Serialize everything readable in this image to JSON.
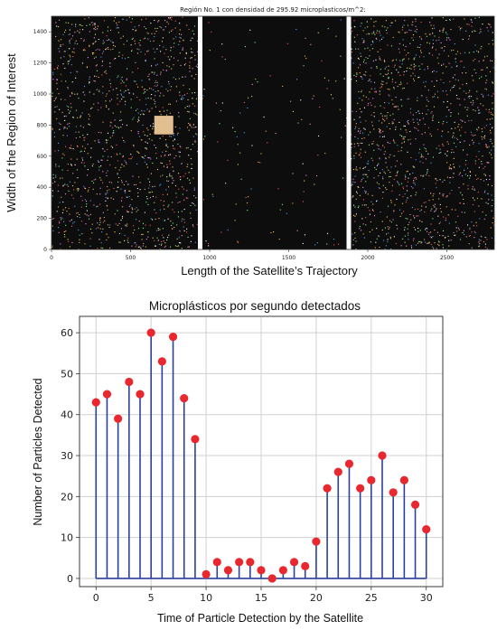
{
  "chart_data": [
    {
      "type": "scatter",
      "title": "Región No. 1 con densidad de 295.92 microplasticos/m^2:",
      "xlabel": "Length of the Satellite’s Trajectory",
      "ylabel": "Width of the Region of Interest",
      "xlim": [
        0,
        2800
      ],
      "ylim": [
        0,
        1500
      ],
      "xticks": [
        "0",
        "500",
        "1000",
        "1500",
        "2000",
        "2500"
      ],
      "yticks": [
        "0",
        "200",
        "400",
        "600",
        "800",
        "1000",
        "1200",
        "1400"
      ],
      "background_color": "#0d0d0d",
      "particle_colors": [
        "#ffd24a",
        "#ff5a5a",
        "#4aa3ff",
        "#ffffff",
        "#7cff7c",
        "#ff8cff",
        "#ffb050"
      ],
      "dividers_x": [
        940,
        1880
      ],
      "segments": [
        {
          "x_range": [
            0,
            930
          ],
          "density": "high"
        },
        {
          "x_range": [
            950,
            1870
          ],
          "density": "low"
        },
        {
          "x_range": [
            1890,
            2800
          ],
          "density": "high"
        }
      ],
      "highlight_box": {
        "x_range": [
          650,
          770
        ],
        "y_range": [
          740,
          860
        ],
        "color": "#e2bf91"
      }
    },
    {
      "type": "stem",
      "title": "Microplásticos por segundo detectados",
      "xlabel": "Time of Particle Detection by the Satellite",
      "ylabel": "Number of Particles Detected",
      "xlim": [
        -1.5,
        31.5
      ],
      "ylim": [
        -2,
        64
      ],
      "xticks": [
        "0",
        "5",
        "10",
        "15",
        "20",
        "25",
        "30"
      ],
      "yticks": [
        "0",
        "10",
        "20",
        "30",
        "40",
        "50",
        "60"
      ],
      "grid": true,
      "stem_color": "#2b3f9e",
      "marker_color": "#e8282e",
      "x": [
        0,
        1,
        2,
        3,
        4,
        5,
        6,
        7,
        8,
        9,
        10,
        11,
        12,
        13,
        14,
        15,
        16,
        17,
        18,
        19,
        20,
        21,
        22,
        23,
        24,
        25,
        26,
        27,
        28,
        29,
        30
      ],
      "values": [
        43,
        45,
        39,
        48,
        45,
        60,
        53,
        59,
        44,
        34,
        1,
        4,
        2,
        4,
        4,
        2,
        0,
        2,
        4,
        3,
        9,
        22,
        26,
        28,
        22,
        24,
        30,
        21,
        24,
        18,
        12
      ]
    }
  ]
}
